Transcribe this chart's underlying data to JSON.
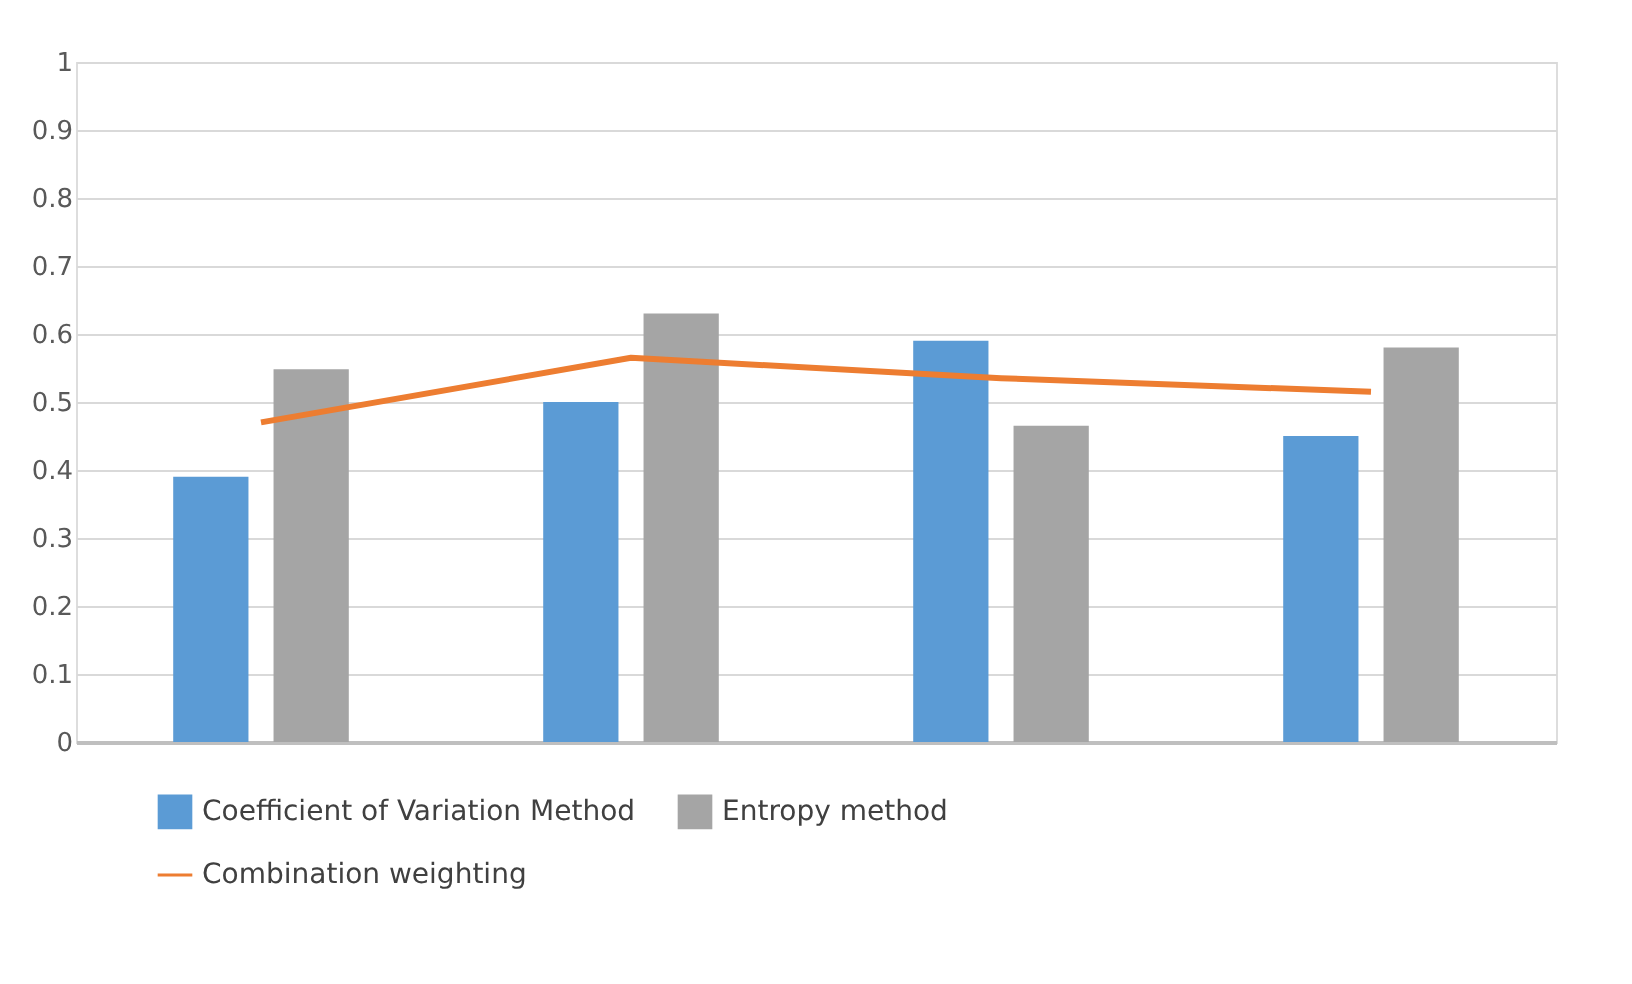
{
  "chart_data": {
    "type": "bar",
    "categories": [
      null,
      null,
      null,
      null
    ],
    "series": [
      {
        "name": "Coefficient of Variation Method",
        "color": "#5b9bd5",
        "values": [
          0.39,
          0.5,
          0.59,
          0.45
        ]
      },
      {
        "name": "Entropy method",
        "color": "#a5a5a5",
        "values": [
          0.548,
          0.63,
          0.465,
          0.58
        ]
      },
      {
        "name": "Combination weighting",
        "color": "#ed7d31",
        "type": "line",
        "values": [
          0.47,
          0.565,
          0.535,
          0.515
        ]
      }
    ],
    "ylim": [
      0,
      1
    ],
    "yticks": [
      0,
      0.1,
      0.2,
      0.3,
      0.4,
      0.5,
      0.6,
      0.7,
      0.8,
      0.9,
      1
    ],
    "grid": "y",
    "legend": "bottom",
    "marker": "none"
  }
}
